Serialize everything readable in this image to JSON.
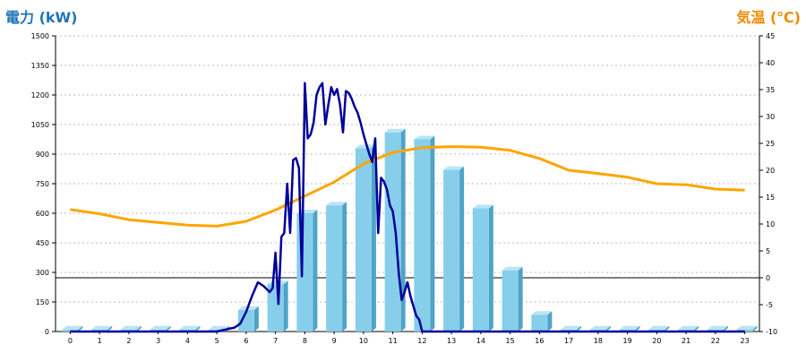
{
  "colors": {
    "power_title": "#1f73b7",
    "temp_title": "#f08a00",
    "bar_face": "#87ceeb",
    "bar_side": "#4fa3c7",
    "bar_top": "#b9e4f5",
    "line_power": "#000099",
    "line_temp": "#ffa500",
    "grid": "#bbbbbb",
    "axis": "#000000"
  },
  "chart_data": {
    "type": "bar+line",
    "left_axis": {
      "title": "電力 (kW)",
      "ylim": [
        0,
        1500
      ],
      "ticks": [
        "0",
        "150",
        "300",
        "450",
        "600",
        "750",
        "900",
        "1050",
        "1200",
        "1350",
        "1500"
      ]
    },
    "right_axis": {
      "title": "気温 (℃)",
      "ylim": [
        -10,
        45
      ],
      "ticks": [
        "-10",
        "-5",
        "0",
        "5",
        "10",
        "15",
        "20",
        "25",
        "30",
        "35",
        "40",
        "45"
      ]
    },
    "x_ticks": [
      "0",
      "1",
      "2",
      "3",
      "4",
      "5",
      "6",
      "7",
      "8",
      "9",
      "10",
      "11",
      "12",
      "13",
      "14",
      "15",
      "16",
      "17",
      "18",
      "19",
      "20",
      "21",
      "22",
      "23"
    ],
    "grid": true,
    "bars": {
      "axis": "left",
      "values": [
        10,
        10,
        10,
        10,
        10,
        10,
        110,
        240,
        600,
        640,
        930,
        1010,
        975,
        820,
        625,
        310,
        85,
        10,
        10,
        10,
        10,
        10,
        10,
        10
      ]
    },
    "power_line": {
      "axis": "left",
      "x": [
        0,
        1,
        2,
        3,
        4,
        5,
        5.6,
        5.8,
        6.0,
        6.2,
        6.4,
        6.6,
        6.8,
        6.9,
        7.0,
        7.1,
        7.2,
        7.3,
        7.4,
        7.5,
        7.6,
        7.7,
        7.8,
        7.9,
        8.0,
        8.1,
        8.2,
        8.3,
        8.4,
        8.5,
        8.6,
        8.7,
        8.8,
        8.9,
        9.0,
        9.1,
        9.2,
        9.3,
        9.4,
        9.5,
        9.6,
        9.7,
        9.8,
        9.9,
        10.0,
        10.1,
        10.2,
        10.3,
        10.4,
        10.5,
        10.6,
        10.7,
        10.8,
        10.9,
        11.0,
        11.1,
        11.2,
        11.3,
        11.4,
        11.5,
        11.6,
        11.7,
        11.8,
        11.9,
        12.0,
        12.2,
        12.4,
        12.6,
        12.8,
        13.0,
        13.1,
        13.2,
        13.3,
        13.4,
        13.5,
        13.6,
        13.7,
        13.8,
        13.9,
        14.0,
        14.1,
        14.2,
        14.3,
        14.4,
        14.5,
        14.6,
        14.7,
        14.8,
        14.9,
        15.0,
        15.1,
        15.2,
        15.3,
        15.4,
        15.5,
        15.6,
        15.7,
        15.8,
        15.9,
        16.0,
        16.2,
        16.4,
        16.6,
        16.8,
        17,
        18,
        19,
        20,
        21,
        22,
        23
      ],
      "values": [
        0,
        0,
        0,
        0,
        0,
        0,
        20,
        40,
        100,
        180,
        250,
        230,
        200,
        220,
        400,
        140,
        480,
        500,
        750,
        500,
        870,
        880,
        830,
        280,
        1260,
        980,
        1000,
        1060,
        1200,
        1240,
        1260,
        1050,
        1150,
        1240,
        1200,
        1230,
        1150,
        1010,
        1220,
        1210,
        1180,
        1140,
        1110,
        1060,
        1000,
        950,
        900,
        860,
        980,
        500,
        780,
        760,
        720,
        640,
        610,
        500,
        300,
        160,
        200,
        250,
        180,
        130,
        80,
        60,
        0,
        0,
        0,
        0,
        0,
        0,
        0,
        0,
        0,
        0,
        0,
        0,
        0,
        0,
        0,
        0,
        0,
        0,
        0,
        0,
        0,
        0,
        0,
        0,
        0,
        0,
        0,
        0,
        0,
        0,
        0,
        0,
        0,
        0,
        0,
        0,
        0,
        0,
        0,
        0,
        0,
        0,
        0,
        0,
        0,
        0,
        0
      ]
    },
    "temp_line": {
      "axis": "right",
      "x": [
        0,
        1,
        2,
        3,
        4,
        5,
        6,
        7,
        8,
        9,
        10,
        11,
        12,
        13,
        14,
        15,
        16,
        17,
        18,
        19,
        20,
        21,
        22,
        23
      ],
      "values": [
        12.7,
        11.9,
        10.8,
        10.3,
        9.8,
        9.6,
        10.5,
        12.6,
        15.2,
        17.8,
        21.2,
        23.3,
        24.2,
        24.4,
        24.3,
        23.7,
        22.2,
        20.0,
        19.4,
        18.7,
        17.5,
        17.3,
        16.5,
        16.3
      ]
    }
  }
}
